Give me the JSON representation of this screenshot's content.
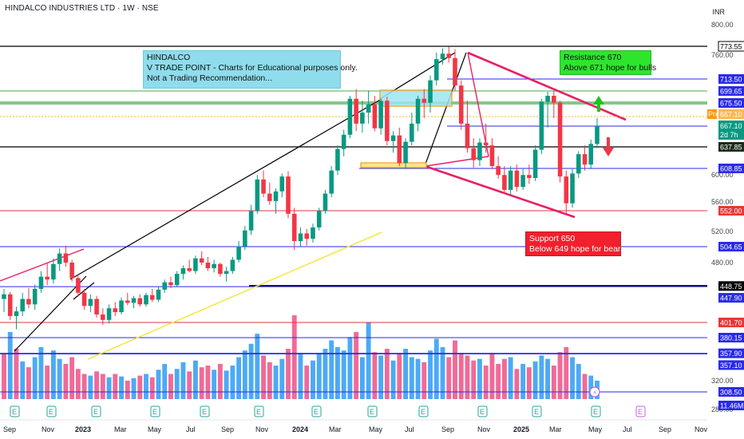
{
  "header": {
    "title": "HINDALCO INDUSTRIES LTD · 1W · NSE",
    "currency": "INR"
  },
  "annotations": {
    "education": [
      "HINDALCO",
      "V TRADE POINT - Charts for Educational purposes only.",
      "Not a Trading Recommendation..."
    ],
    "resistance": [
      "Resistance 670",
      "Above 671 hope for bulls"
    ],
    "support": [
      "Support 650",
      "Below 649 hope for bears"
    ]
  },
  "colors": {
    "up": "#089981",
    "down": "#f23645",
    "volume_up": "#42a5f5",
    "volume_down": "#f06292",
    "level_blue": "#2a2ae8",
    "level_black": "#000000",
    "level_red": "#e53935",
    "zone_green": "#66bb6a",
    "trend_pink": "#e91e63",
    "trend_yellow": "#f5e642"
  },
  "chart_data": {
    "type": "candlestick",
    "x_labels": [
      "Sep",
      "Nov",
      "2023",
      "Mar",
      "May",
      "Jul",
      "Sep",
      "Nov",
      "2024",
      "Mar",
      "May",
      "Jul",
      "Sep",
      "Nov",
      "2025",
      "Mar",
      "May",
      "Jul",
      "Sep",
      "Nov"
    ],
    "y_ticks": [
      "800.00",
      "760.00",
      "600.00",
      "560.00",
      "520.00",
      "480.00",
      "320.00",
      "280.00"
    ],
    "price_range": [
      270,
      810
    ],
    "price_levels": [
      {
        "label": "773.55",
        "value": 773.55,
        "style": "black"
      },
      {
        "label": "713.50",
        "value": 713.5,
        "style": "blue"
      },
      {
        "label": "699.65",
        "value": 699.65,
        "style": "green"
      },
      {
        "label": "675.50",
        "value": 675.5,
        "style": "green"
      },
      {
        "label": "667.10",
        "value": 667.1,
        "style": "blue"
      },
      {
        "label": "637.85",
        "value": 637.85,
        "style": "black"
      },
      {
        "label": "608.85",
        "value": 608.85,
        "style": "blue"
      },
      {
        "label": "552.00",
        "value": 552.0,
        "style": "red"
      },
      {
        "label": "504.65",
        "value": 504.65,
        "style": "blue"
      },
      {
        "label": "448.75",
        "value": 448.75,
        "style": "black"
      },
      {
        "label": "447.90",
        "value": 447.9,
        "style": "blue"
      },
      {
        "label": "401.70",
        "value": 401.7,
        "style": "red"
      },
      {
        "label": "380.15",
        "value": 380.15,
        "style": "blue"
      },
      {
        "label": "357.90",
        "value": 357.9,
        "style": "blue"
      },
      {
        "label": "357.10",
        "value": 357.1,
        "style": "blue"
      },
      {
        "label": "308.50",
        "value": 308.5,
        "style": "blue"
      },
      {
        "label": "11.46M",
        "value": 290,
        "style": "blue"
      }
    ],
    "current_price": {
      "pre_label": "Pre",
      "value_label": "667.10",
      "value": 667.1,
      "last_label": "667.10",
      "countdown": "2d 7h"
    },
    "candles": [
      {
        "o": 432,
        "h": 445,
        "l": 415,
        "c": 438
      },
      {
        "o": 438,
        "h": 441,
        "l": 405,
        "c": 410
      },
      {
        "o": 410,
        "h": 422,
        "l": 392,
        "c": 416
      },
      {
        "o": 416,
        "h": 440,
        "l": 410,
        "c": 432
      },
      {
        "o": 432,
        "h": 446,
        "l": 420,
        "c": 425
      },
      {
        "o": 425,
        "h": 451,
        "l": 418,
        "c": 445
      },
      {
        "o": 445,
        "h": 470,
        "l": 440,
        "c": 462
      },
      {
        "o": 462,
        "h": 482,
        "l": 450,
        "c": 458
      },
      {
        "o": 458,
        "h": 488,
        "l": 452,
        "c": 480
      },
      {
        "o": 480,
        "h": 502,
        "l": 470,
        "c": 495
      },
      {
        "o": 495,
        "h": 506,
        "l": 476,
        "c": 482
      },
      {
        "o": 482,
        "h": 486,
        "l": 455,
        "c": 460
      },
      {
        "o": 460,
        "h": 465,
        "l": 435,
        "c": 440
      },
      {
        "o": 440,
        "h": 445,
        "l": 418,
        "c": 423
      },
      {
        "o": 423,
        "h": 438,
        "l": 415,
        "c": 432
      },
      {
        "o": 432,
        "h": 436,
        "l": 408,
        "c": 412
      },
      {
        "o": 412,
        "h": 420,
        "l": 398,
        "c": 405
      },
      {
        "o": 405,
        "h": 425,
        "l": 400,
        "c": 420
      },
      {
        "o": 420,
        "h": 428,
        "l": 410,
        "c": 415
      },
      {
        "o": 415,
        "h": 434,
        "l": 412,
        "c": 430
      },
      {
        "o": 430,
        "h": 440,
        "l": 424,
        "c": 427
      },
      {
        "o": 427,
        "h": 436,
        "l": 420,
        "c": 433
      },
      {
        "o": 433,
        "h": 438,
        "l": 422,
        "c": 425
      },
      {
        "o": 425,
        "h": 440,
        "l": 422,
        "c": 437
      },
      {
        "o": 437,
        "h": 445,
        "l": 428,
        "c": 431
      },
      {
        "o": 431,
        "h": 448,
        "l": 428,
        "c": 444
      },
      {
        "o": 444,
        "h": 458,
        "l": 440,
        "c": 454
      },
      {
        "o": 454,
        "h": 462,
        "l": 446,
        "c": 450
      },
      {
        "o": 450,
        "h": 470,
        "l": 448,
        "c": 466
      },
      {
        "o": 466,
        "h": 478,
        "l": 458,
        "c": 474
      },
      {
        "o": 474,
        "h": 486,
        "l": 468,
        "c": 470
      },
      {
        "o": 470,
        "h": 492,
        "l": 466,
        "c": 488
      },
      {
        "o": 488,
        "h": 498,
        "l": 478,
        "c": 482
      },
      {
        "o": 482,
        "h": 490,
        "l": 470,
        "c": 474
      },
      {
        "o": 474,
        "h": 486,
        "l": 468,
        "c": 480
      },
      {
        "o": 480,
        "h": 482,
        "l": 462,
        "c": 466
      },
      {
        "o": 466,
        "h": 476,
        "l": 455,
        "c": 470
      },
      {
        "o": 470,
        "h": 490,
        "l": 466,
        "c": 486
      },
      {
        "o": 486,
        "h": 512,
        "l": 482,
        "c": 505
      },
      {
        "o": 505,
        "h": 532,
        "l": 500,
        "c": 526
      },
      {
        "o": 526,
        "h": 560,
        "l": 520,
        "c": 552
      },
      {
        "o": 552,
        "h": 600,
        "l": 548,
        "c": 594
      },
      {
        "o": 594,
        "h": 606,
        "l": 570,
        "c": 575
      },
      {
        "o": 575,
        "h": 590,
        "l": 560,
        "c": 565
      },
      {
        "o": 565,
        "h": 582,
        "l": 548,
        "c": 578
      },
      {
        "o": 578,
        "h": 602,
        "l": 570,
        "c": 598
      },
      {
        "o": 598,
        "h": 605,
        "l": 542,
        "c": 548
      },
      {
        "o": 548,
        "h": 556,
        "l": 500,
        "c": 512
      },
      {
        "o": 512,
        "h": 530,
        "l": 505,
        "c": 522
      },
      {
        "o": 522,
        "h": 528,
        "l": 506,
        "c": 515
      },
      {
        "o": 515,
        "h": 535,
        "l": 510,
        "c": 530
      },
      {
        "o": 530,
        "h": 556,
        "l": 526,
        "c": 552
      },
      {
        "o": 552,
        "h": 580,
        "l": 548,
        "c": 575
      },
      {
        "o": 575,
        "h": 612,
        "l": 570,
        "c": 606
      },
      {
        "o": 606,
        "h": 640,
        "l": 600,
        "c": 635
      },
      {
        "o": 635,
        "h": 662,
        "l": 625,
        "c": 655
      },
      {
        "o": 655,
        "h": 690,
        "l": 650,
        "c": 684
      },
      {
        "o": 684,
        "h": 702,
        "l": 660,
        "c": 668
      },
      {
        "o": 668,
        "h": 680,
        "l": 658,
        "c": 672
      },
      {
        "o": 672,
        "h": 700,
        "l": 668,
        "c": 675
      },
      {
        "o": 675,
        "h": 690,
        "l": 660,
        "c": 664
      },
      {
        "o": 664,
        "h": 684,
        "l": 655,
        "c": 680
      },
      {
        "o": 680,
        "h": 688,
        "l": 640,
        "c": 646
      },
      {
        "o": 646,
        "h": 660,
        "l": 630,
        "c": 654
      },
      {
        "o": 654,
        "h": 665,
        "l": 612,
        "c": 616
      },
      {
        "o": 616,
        "h": 650,
        "l": 608,
        "c": 645
      },
      {
        "o": 645,
        "h": 672,
        "l": 640,
        "c": 668
      },
      {
        "o": 668,
        "h": 690,
        "l": 660,
        "c": 684
      },
      {
        "o": 684,
        "h": 702,
        "l": 670,
        "c": 676
      },
      {
        "o": 676,
        "h": 720,
        "l": 672,
        "c": 712
      },
      {
        "o": 712,
        "h": 762,
        "l": 706,
        "c": 750
      },
      {
        "o": 750,
        "h": 770,
        "l": 740,
        "c": 760
      },
      {
        "o": 760,
        "h": 773,
        "l": 744,
        "c": 752
      },
      {
        "o": 752,
        "h": 768,
        "l": 700,
        "c": 706
      },
      {
        "o": 706,
        "h": 712,
        "l": 662,
        "c": 668
      },
      {
        "o": 668,
        "h": 680,
        "l": 630,
        "c": 636
      },
      {
        "o": 636,
        "h": 650,
        "l": 610,
        "c": 620
      },
      {
        "o": 620,
        "h": 650,
        "l": 612,
        "c": 644
      },
      {
        "o": 644,
        "h": 668,
        "l": 630,
        "c": 640
      },
      {
        "o": 640,
        "h": 650,
        "l": 608,
        "c": 612
      },
      {
        "o": 612,
        "h": 625,
        "l": 595,
        "c": 600
      },
      {
        "o": 600,
        "h": 612,
        "l": 575,
        "c": 580
      },
      {
        "o": 580,
        "h": 612,
        "l": 574,
        "c": 606
      },
      {
        "o": 606,
        "h": 614,
        "l": 578,
        "c": 584
      },
      {
        "o": 584,
        "h": 608,
        "l": 580,
        "c": 600
      },
      {
        "o": 600,
        "h": 614,
        "l": 588,
        "c": 596
      },
      {
        "o": 596,
        "h": 640,
        "l": 592,
        "c": 634
      },
      {
        "o": 634,
        "h": 684,
        "l": 628,
        "c": 678
      },
      {
        "o": 678,
        "h": 698,
        "l": 665,
        "c": 690
      },
      {
        "o": 690,
        "h": 700,
        "l": 670,
        "c": 676
      },
      {
        "o": 676,
        "h": 680,
        "l": 590,
        "c": 598
      },
      {
        "o": 598,
        "h": 606,
        "l": 548,
        "c": 562
      },
      {
        "o": 562,
        "h": 608,
        "l": 556,
        "c": 602
      },
      {
        "o": 602,
        "h": 632,
        "l": 596,
        "c": 628
      },
      {
        "o": 628,
        "h": 640,
        "l": 606,
        "c": 614
      },
      {
        "o": 614,
        "h": 648,
        "l": 608,
        "c": 642
      },
      {
        "o": 642,
        "h": 670,
        "l": 636,
        "c": 667
      }
    ],
    "volume_up_down": "blue = up week, pink = down week",
    "volume": [
      {
        "v": 0.55,
        "up": false
      },
      {
        "v": 0.8,
        "up": true
      },
      {
        "v": 0.6,
        "up": false
      },
      {
        "v": 0.45,
        "up": true
      },
      {
        "v": 0.38,
        "up": false
      },
      {
        "v": 0.5,
        "up": true
      },
      {
        "v": 0.62,
        "up": true
      },
      {
        "v": 0.4,
        "up": false
      },
      {
        "v": 0.58,
        "up": true
      },
      {
        "v": 0.48,
        "up": true
      },
      {
        "v": 0.42,
        "up": false
      },
      {
        "v": 0.5,
        "up": false
      },
      {
        "v": 0.36,
        "up": false
      },
      {
        "v": 0.3,
        "up": false
      },
      {
        "v": 0.28,
        "up": true
      },
      {
        "v": 0.33,
        "up": false
      },
      {
        "v": 0.3,
        "up": false
      },
      {
        "v": 0.26,
        "up": true
      },
      {
        "v": 0.3,
        "up": false
      },
      {
        "v": 0.27,
        "up": true
      },
      {
        "v": 0.22,
        "up": false
      },
      {
        "v": 0.25,
        "up": true
      },
      {
        "v": 0.28,
        "up": false
      },
      {
        "v": 0.3,
        "up": true
      },
      {
        "v": 0.26,
        "up": false
      },
      {
        "v": 0.35,
        "up": true
      },
      {
        "v": 0.42,
        "up": true
      },
      {
        "v": 0.3,
        "up": false
      },
      {
        "v": 0.36,
        "up": true
      },
      {
        "v": 0.44,
        "up": true
      },
      {
        "v": 0.33,
        "up": false
      },
      {
        "v": 0.46,
        "up": true
      },
      {
        "v": 0.38,
        "up": false
      },
      {
        "v": 0.4,
        "up": false
      },
      {
        "v": 0.35,
        "up": true
      },
      {
        "v": 0.42,
        "up": false
      },
      {
        "v": 0.34,
        "up": true
      },
      {
        "v": 0.4,
        "up": true
      },
      {
        "v": 0.5,
        "up": true
      },
      {
        "v": 0.58,
        "up": true
      },
      {
        "v": 0.66,
        "up": true
      },
      {
        "v": 0.78,
        "up": true
      },
      {
        "v": 0.52,
        "up": false
      },
      {
        "v": 0.44,
        "up": false
      },
      {
        "v": 0.4,
        "up": true
      },
      {
        "v": 0.48,
        "up": true
      },
      {
        "v": 0.6,
        "up": false
      },
      {
        "v": 1.0,
        "up": false
      },
      {
        "v": 0.55,
        "up": true
      },
      {
        "v": 0.4,
        "up": false
      },
      {
        "v": 0.46,
        "up": true
      },
      {
        "v": 0.55,
        "up": true
      },
      {
        "v": 0.6,
        "up": true
      },
      {
        "v": 0.7,
        "up": true
      },
      {
        "v": 0.62,
        "up": true
      },
      {
        "v": 0.58,
        "up": true
      },
      {
        "v": 0.74,
        "up": true
      },
      {
        "v": 0.8,
        "up": false
      },
      {
        "v": 0.5,
        "up": true
      },
      {
        "v": 0.92,
        "up": true
      },
      {
        "v": 0.56,
        "up": false
      },
      {
        "v": 0.52,
        "up": true
      },
      {
        "v": 0.6,
        "up": false
      },
      {
        "v": 0.46,
        "up": true
      },
      {
        "v": 0.55,
        "up": false
      },
      {
        "v": 0.6,
        "up": true
      },
      {
        "v": 0.5,
        "up": true
      },
      {
        "v": 0.48,
        "up": true
      },
      {
        "v": 0.44,
        "up": false
      },
      {
        "v": 0.58,
        "up": true
      },
      {
        "v": 0.72,
        "up": true
      },
      {
        "v": 0.62,
        "up": true
      },
      {
        "v": 0.5,
        "up": false
      },
      {
        "v": 0.7,
        "up": false
      },
      {
        "v": 0.55,
        "up": false
      },
      {
        "v": 0.52,
        "up": false
      },
      {
        "v": 0.46,
        "up": false
      },
      {
        "v": 0.48,
        "up": true
      },
      {
        "v": 0.4,
        "up": false
      },
      {
        "v": 0.55,
        "up": false
      },
      {
        "v": 0.42,
        "up": false
      },
      {
        "v": 0.48,
        "up": false
      },
      {
        "v": 0.5,
        "up": true
      },
      {
        "v": 0.36,
        "up": false
      },
      {
        "v": 0.42,
        "up": true
      },
      {
        "v": 0.38,
        "up": false
      },
      {
        "v": 0.45,
        "up": true
      },
      {
        "v": 0.52,
        "up": true
      },
      {
        "v": 0.48,
        "up": true
      },
      {
        "v": 0.4,
        "up": false
      },
      {
        "v": 0.56,
        "up": false
      },
      {
        "v": 0.62,
        "up": false
      },
      {
        "v": 0.5,
        "up": true
      },
      {
        "v": 0.42,
        "up": true
      },
      {
        "v": 0.3,
        "up": false
      },
      {
        "v": 0.28,
        "up": true
      },
      {
        "v": 0.22,
        "up": true
      }
    ],
    "earnings_markers": [
      "E",
      "E",
      "E",
      "E",
      "E",
      "E",
      "E",
      "E",
      "E",
      "E",
      "E",
      "E",
      "E",
      "E"
    ]
  }
}
